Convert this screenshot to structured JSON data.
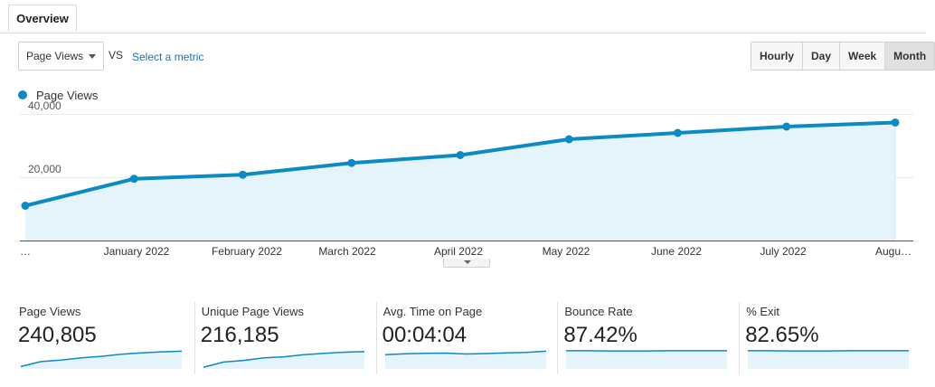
{
  "tabs": [
    {
      "label": "Overview"
    }
  ],
  "controls": {
    "metric_select_value": "Page Views",
    "vs_label": "VS",
    "select_metric_label": "Select a metric",
    "period_buttons": [
      "Hourly",
      "Day",
      "Week",
      "Month"
    ],
    "active_period": "Month"
  },
  "colors": {
    "line": "#0b8ac4",
    "fill": "#e5f4fb",
    "sparkline": "#0b8ac4"
  },
  "chart_data": {
    "type": "area",
    "legend": [
      "Page Views"
    ],
    "legend_placement": "top-left",
    "x_tick_labels": [
      "…",
      "January 2022",
      "February 2022",
      "March 2022",
      "April 2022",
      "May 2022",
      "June 2022",
      "July 2022",
      "Augu…"
    ],
    "y_tick_labels": [
      "40,000",
      "20,000"
    ],
    "ylim": [
      0,
      40000
    ],
    "grid": true,
    "series": [
      {
        "name": "Page Views",
        "values": [
          11000,
          19500,
          20800,
          24500,
          27000,
          32000,
          34000,
          36000,
          37300
        ]
      }
    ]
  },
  "stats": [
    {
      "label": "Page Views",
      "value": "240,805",
      "trend": [
        0.15,
        0.38,
        0.45,
        0.55,
        0.62,
        0.72,
        0.78,
        0.83,
        0.86
      ]
    },
    {
      "label": "Unique Page Views",
      "value": "216,185",
      "trend": [
        0.12,
        0.36,
        0.43,
        0.55,
        0.6,
        0.7,
        0.76,
        0.81,
        0.84
      ]
    },
    {
      "label": "Avg. Time on Page",
      "value": "00:04:04",
      "trend": [
        0.7,
        0.74,
        0.76,
        0.77,
        0.73,
        0.75,
        0.78,
        0.8,
        0.86
      ]
    },
    {
      "label": "Bounce Rate",
      "value": "87.42%",
      "trend": [
        0.88,
        0.88,
        0.87,
        0.87,
        0.87,
        0.88,
        0.88,
        0.88,
        0.88
      ]
    },
    {
      "label": "% Exit",
      "value": "82.65%",
      "trend": [
        0.88,
        0.88,
        0.87,
        0.87,
        0.87,
        0.88,
        0.88,
        0.88,
        0.88
      ]
    }
  ]
}
